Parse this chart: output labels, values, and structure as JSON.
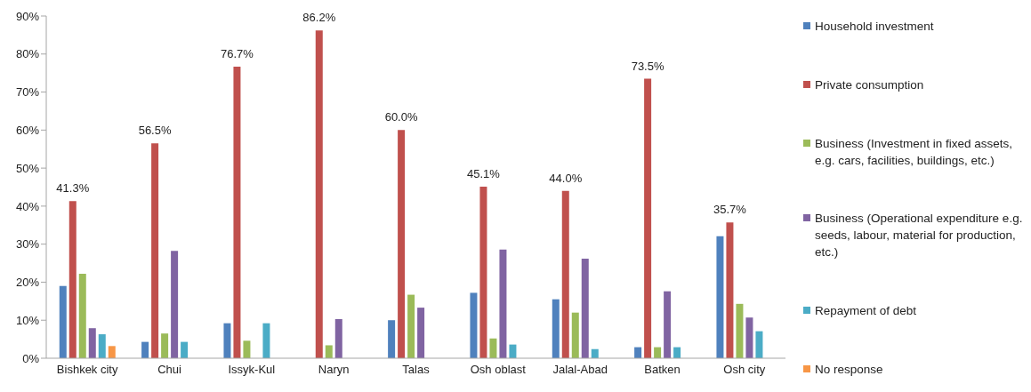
{
  "chart_data": {
    "type": "bar",
    "categories": [
      "Bishkek city",
      "Chui",
      "Issyk-Kul",
      "Naryn",
      "Talas",
      "Osh oblast",
      "Jalal-Abad",
      "Batken",
      "Osh city"
    ],
    "series": [
      {
        "name": "Household investment",
        "color": "#4f81bd",
        "values": [
          19.0,
          4.3,
          9.2,
          null,
          10.0,
          17.2,
          15.5,
          2.9,
          32.1
        ]
      },
      {
        "name": "Private consumption",
        "color": "#c0504d",
        "values": [
          41.3,
          56.5,
          76.7,
          86.2,
          60.0,
          45.1,
          44.0,
          73.5,
          35.7
        ],
        "value_labels": [
          "41.3%",
          "56.5%",
          "76.7%",
          "86.2%",
          "60.0%",
          "45.1%",
          "44.0%",
          "73.5%",
          "35.7%"
        ]
      },
      {
        "name": "Business (Investment in fixed assets, e.g. cars, facilities, buildings, etc.)",
        "color": "#9bbb59",
        "values": [
          22.2,
          6.5,
          4.6,
          3.4,
          16.7,
          5.2,
          12.0,
          2.9,
          14.3
        ]
      },
      {
        "name": "Business (Operational expenditure e.g. seeds, labour, material for production, etc.)",
        "color": "#8064a2",
        "values": [
          7.9,
          28.2,
          null,
          10.3,
          13.3,
          28.6,
          26.2,
          17.6,
          10.7
        ]
      },
      {
        "name": "Repayment of debt",
        "color": "#4bacc6",
        "values": [
          6.3,
          4.3,
          9.2,
          null,
          null,
          3.6,
          2.4,
          2.9,
          7.1
        ]
      },
      {
        "name": "No response",
        "color": "#f79646",
        "values": [
          3.2,
          null,
          null,
          null,
          null,
          null,
          null,
          null,
          null
        ]
      }
    ],
    "ylim": [
      0,
      90
    ],
    "yticks": [
      {
        "value": 0,
        "label": "0%"
      },
      {
        "value": 10,
        "label": "10%"
      },
      {
        "value": 20,
        "label": "20%"
      },
      {
        "value": 30,
        "label": "30%"
      },
      {
        "value": 40,
        "label": "40%"
      },
      {
        "value": 50,
        "label": "50%"
      },
      {
        "value": 60,
        "label": "60%"
      },
      {
        "value": 70,
        "label": "70%"
      },
      {
        "value": 80,
        "label": "80%"
      },
      {
        "value": 90,
        "label": "90%"
      }
    ],
    "grid": false,
    "legend": "right"
  }
}
